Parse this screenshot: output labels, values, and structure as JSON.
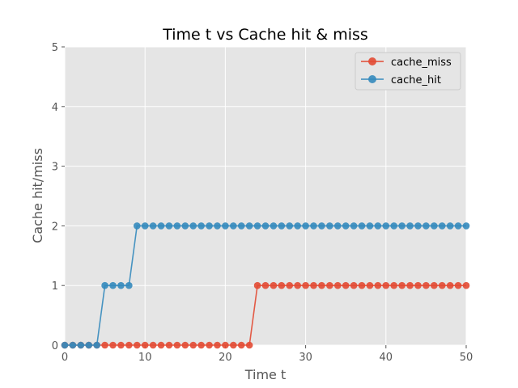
{
  "chart_data": {
    "type": "line",
    "title": "Time t vs Cache hit & miss",
    "xlabel": "Time t",
    "ylabel": "Cache hit/miss",
    "xlim": [
      0,
      50
    ],
    "ylim": [
      0,
      5
    ],
    "xticks": [
      0,
      10,
      20,
      30,
      40,
      50
    ],
    "yticks": [
      0,
      1,
      2,
      3,
      4,
      5
    ],
    "grid": true,
    "legend_position": "top-right",
    "x": [
      0,
      1,
      2,
      3,
      4,
      5,
      6,
      7,
      8,
      9,
      10,
      11,
      12,
      13,
      14,
      15,
      16,
      17,
      18,
      19,
      20,
      21,
      22,
      23,
      24,
      25,
      26,
      27,
      28,
      29,
      30,
      31,
      32,
      33,
      34,
      35,
      36,
      37,
      38,
      39,
      40,
      41,
      42,
      43,
      44,
      45,
      46,
      47,
      48,
      49,
      50
    ],
    "series": [
      {
        "name": "cache_miss",
        "color": "#e24a33",
        "values": [
          0,
          0,
          0,
          0,
          0,
          0,
          0,
          0,
          0,
          0,
          0,
          0,
          0,
          0,
          0,
          0,
          0,
          0,
          0,
          0,
          0,
          0,
          0,
          0,
          1,
          1,
          1,
          1,
          1,
          1,
          1,
          1,
          1,
          1,
          1,
          1,
          1,
          1,
          1,
          1,
          1,
          1,
          1,
          1,
          1,
          1,
          1,
          1,
          1,
          1,
          1
        ]
      },
      {
        "name": "cache_hit",
        "color": "#348abd",
        "values": [
          0,
          0,
          0,
          0,
          0,
          1,
          1,
          1,
          1,
          2,
          2,
          2,
          2,
          2,
          2,
          2,
          2,
          2,
          2,
          2,
          2,
          2,
          2,
          2,
          2,
          2,
          2,
          2,
          2,
          2,
          2,
          2,
          2,
          2,
          2,
          2,
          2,
          2,
          2,
          2,
          2,
          2,
          2,
          2,
          2,
          2,
          2,
          2,
          2,
          2,
          2
        ]
      }
    ]
  }
}
